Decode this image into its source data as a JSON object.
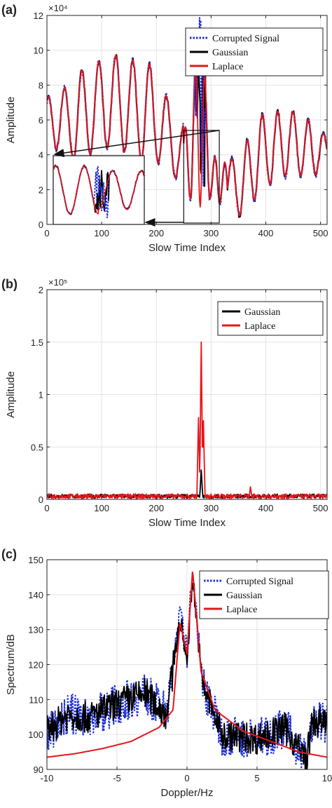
{
  "figure": {
    "panels": [
      {
        "id": "a",
        "panel_label": "(a)",
        "xlabel": "Slow Time Index",
        "ylabel": "Amplitude",
        "exponent_label": "×10⁴",
        "xlim": [
          0,
          512
        ],
        "ylim": [
          0,
          12
        ],
        "xticks": [
          0,
          100,
          200,
          300,
          400,
          500
        ],
        "yticks": [
          0,
          2,
          4,
          6,
          8,
          10,
          12
        ],
        "grid": true,
        "legend": "top-right",
        "legend_entries": [
          {
            "name": "Corrupted Signal",
            "color": "#1f2fd6",
            "style": "dotted"
          },
          {
            "name": "Gaussian",
            "color": "#000000",
            "style": "solid"
          },
          {
            "name": "Laplace",
            "color": "#e8141b",
            "style": "solid"
          }
        ],
        "zoom_box": {
          "x_range": [
            250,
            315
          ],
          "y_range": [
            0,
            5.4
          ]
        }
      },
      {
        "id": "b",
        "panel_label": "(b)",
        "xlabel": "Slow Time Index",
        "ylabel": "Amplitude",
        "exponent_label": "×10⁵",
        "xlim": [
          0,
          512
        ],
        "ylim": [
          0,
          2
        ],
        "xticks": [
          0,
          100,
          200,
          300,
          400,
          500
        ],
        "yticks": [
          0,
          0.5,
          1,
          1.5,
          2
        ],
        "grid": true,
        "legend": "top-right",
        "legend_entries": [
          {
            "name": "Gaussian",
            "color": "#000000",
            "style": "solid"
          },
          {
            "name": "Laplace",
            "color": "#e8141b",
            "style": "solid"
          }
        ]
      },
      {
        "id": "c",
        "panel_label": "(c)",
        "xlabel": "Doppler/Hz",
        "ylabel": "Spectrum/dB",
        "exponent_label": "",
        "xlim": [
          -10,
          10
        ],
        "ylim": [
          90,
          150
        ],
        "xticks": [
          -10,
          -5,
          0,
          5,
          10
        ],
        "yticks": [
          90,
          100,
          110,
          120,
          130,
          140,
          150
        ],
        "grid": true,
        "legend": "top-right",
        "legend_entries": [
          {
            "name": "Corrupted Signal",
            "color": "#1f2fd6",
            "style": "dotted"
          },
          {
            "name": "Gaussian",
            "color": "#000000",
            "style": "solid"
          },
          {
            "name": "Laplace",
            "color": "#e8141b",
            "style": "solid"
          }
        ]
      }
    ]
  },
  "chart_data": [
    {
      "type": "line",
      "panel": "a",
      "xlabel": "Slow Time Index",
      "ylabel": "Amplitude",
      "xlim": [
        0,
        512
      ],
      "ylim": [
        0,
        12
      ],
      "series_names": [
        "Corrupted Signal",
        "Gaussian",
        "Laplace"
      ],
      "envelope_x": [
        0,
        20,
        40,
        60,
        90,
        120,
        150,
        180,
        210,
        240,
        260,
        280,
        300,
        330,
        360,
        390,
        420,
        450,
        480,
        512
      ],
      "envelope_peaks": [
        7.2,
        8.4,
        7.5,
        8.8,
        9.3,
        9.8,
        9.4,
        9.6,
        8.0,
        5.8,
        5.5,
        12.0,
        4.0,
        3.5,
        4.5,
        6.3,
        6.5,
        6.5,
        6.0,
        5.0
      ],
      "envelope_troughs": [
        4.3,
        4.3,
        3.8,
        3.7,
        4.2,
        4.5,
        4.0,
        3.5,
        3.5,
        2.5,
        1.5,
        1.0,
        1.5,
        1.0,
        0.3,
        2.0,
        2.5,
        3.0,
        2.5,
        3.5
      ]
    },
    {
      "type": "line",
      "panel": "b",
      "xlabel": "Slow Time Index",
      "ylabel": "Amplitude",
      "xlim": [
        0,
        512
      ],
      "ylim": [
        0,
        2
      ],
      "series_names": [
        "Gaussian",
        "Laplace"
      ],
      "baseline_level": 0.03,
      "peaks": [
        {
          "series": "Laplace",
          "x": 282,
          "y": 1.5
        },
        {
          "series": "Laplace",
          "x": 277,
          "y": 0.78
        },
        {
          "series": "Laplace",
          "x": 286,
          "y": 0.75
        },
        {
          "series": "Gaussian",
          "x": 282,
          "y": 0.28
        },
        {
          "series": "Laplace",
          "x": 372,
          "y": 0.12
        }
      ]
    },
    {
      "type": "line",
      "panel": "c",
      "xlabel": "Doppler/Hz",
      "ylabel": "Spectrum/dB",
      "xlim": [
        -10,
        10
      ],
      "ylim": [
        90,
        150
      ],
      "series_names": [
        "Corrupted Signal",
        "Gaussian",
        "Laplace"
      ],
      "noisy_envelope_x": [
        -10,
        -8.5,
        -7,
        -5,
        -3,
        -1.5,
        -0.5,
        0,
        0.4,
        1,
        2.5,
        5,
        7,
        8.5,
        9,
        10
      ],
      "noisy_envelope_y": [
        105,
        110,
        109,
        113,
        116,
        110,
        134,
        123,
        147,
        120,
        104,
        103,
        106,
        97,
        108,
        107
      ],
      "laplace_x": [
        -10,
        -8,
        -6,
        -4,
        -2,
        -1,
        -0.5,
        0,
        0.4,
        1,
        2,
        4,
        6,
        8,
        10
      ],
      "laplace_y": [
        93.5,
        94.5,
        96,
        98,
        102,
        107,
        132,
        123,
        147,
        118,
        107,
        101,
        98,
        95,
        93.5
      ]
    }
  ]
}
